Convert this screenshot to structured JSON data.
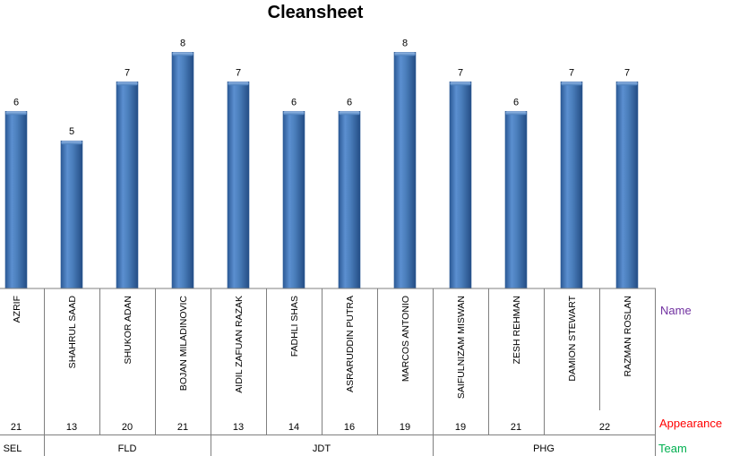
{
  "chart_data": {
    "type": "bar",
    "title": "Cleansheet",
    "categories": [
      "AZRIF",
      "SHAHRUL SAAD",
      "SHUKOR ADAN",
      "BOJAN MILADINOVIC",
      "AIDIL ZAFUAN RAZAK",
      "FADHLI SHAS",
      "ASRARUDDIN PUTRA",
      "MARCOS ANTONIO",
      "SAIFULNIZAM MISWAN",
      "ZESH REHMAN",
      "DAMION STEWART",
      "RAZMAN ROSLAN"
    ],
    "values": [
      6,
      5,
      7,
      8,
      7,
      6,
      6,
      8,
      7,
      6,
      7,
      7
    ],
    "appearances": [
      {
        "label": "21",
        "span": [
          0,
          0
        ]
      },
      {
        "label": "13",
        "span": [
          1,
          1
        ]
      },
      {
        "label": "20",
        "span": [
          2,
          2
        ]
      },
      {
        "label": "21",
        "span": [
          3,
          3
        ]
      },
      {
        "label": "13",
        "span": [
          4,
          4
        ]
      },
      {
        "label": "14",
        "span": [
          5,
          5
        ]
      },
      {
        "label": "16",
        "span": [
          6,
          6
        ]
      },
      {
        "label": "19",
        "span": [
          7,
          7
        ]
      },
      {
        "label": "19",
        "span": [
          8,
          8
        ]
      },
      {
        "label": "21",
        "span": [
          9,
          9
        ]
      },
      {
        "label": "22",
        "span": [
          10,
          11
        ]
      }
    ],
    "teams": [
      {
        "label": "SEL",
        "span": [
          0,
          0
        ]
      },
      {
        "label": "FLD",
        "span": [
          1,
          3
        ]
      },
      {
        "label": "JDT",
        "span": [
          4,
          7
        ]
      },
      {
        "label": "PHG",
        "span": [
          8,
          11
        ]
      }
    ],
    "row_labels": {
      "name": "Name",
      "appearance": "Appearance",
      "team": "Team"
    },
    "ylim": [
      0,
      8.8
    ],
    "grid": false,
    "data_labels": true,
    "colors": {
      "bar": "#4a7ebb",
      "bar_dark": "#2c5a96",
      "bar_light": "#7da6dc",
      "name_label": "#7030a0",
      "appearance_label": "#ff0000",
      "team_label": "#00b050"
    }
  }
}
